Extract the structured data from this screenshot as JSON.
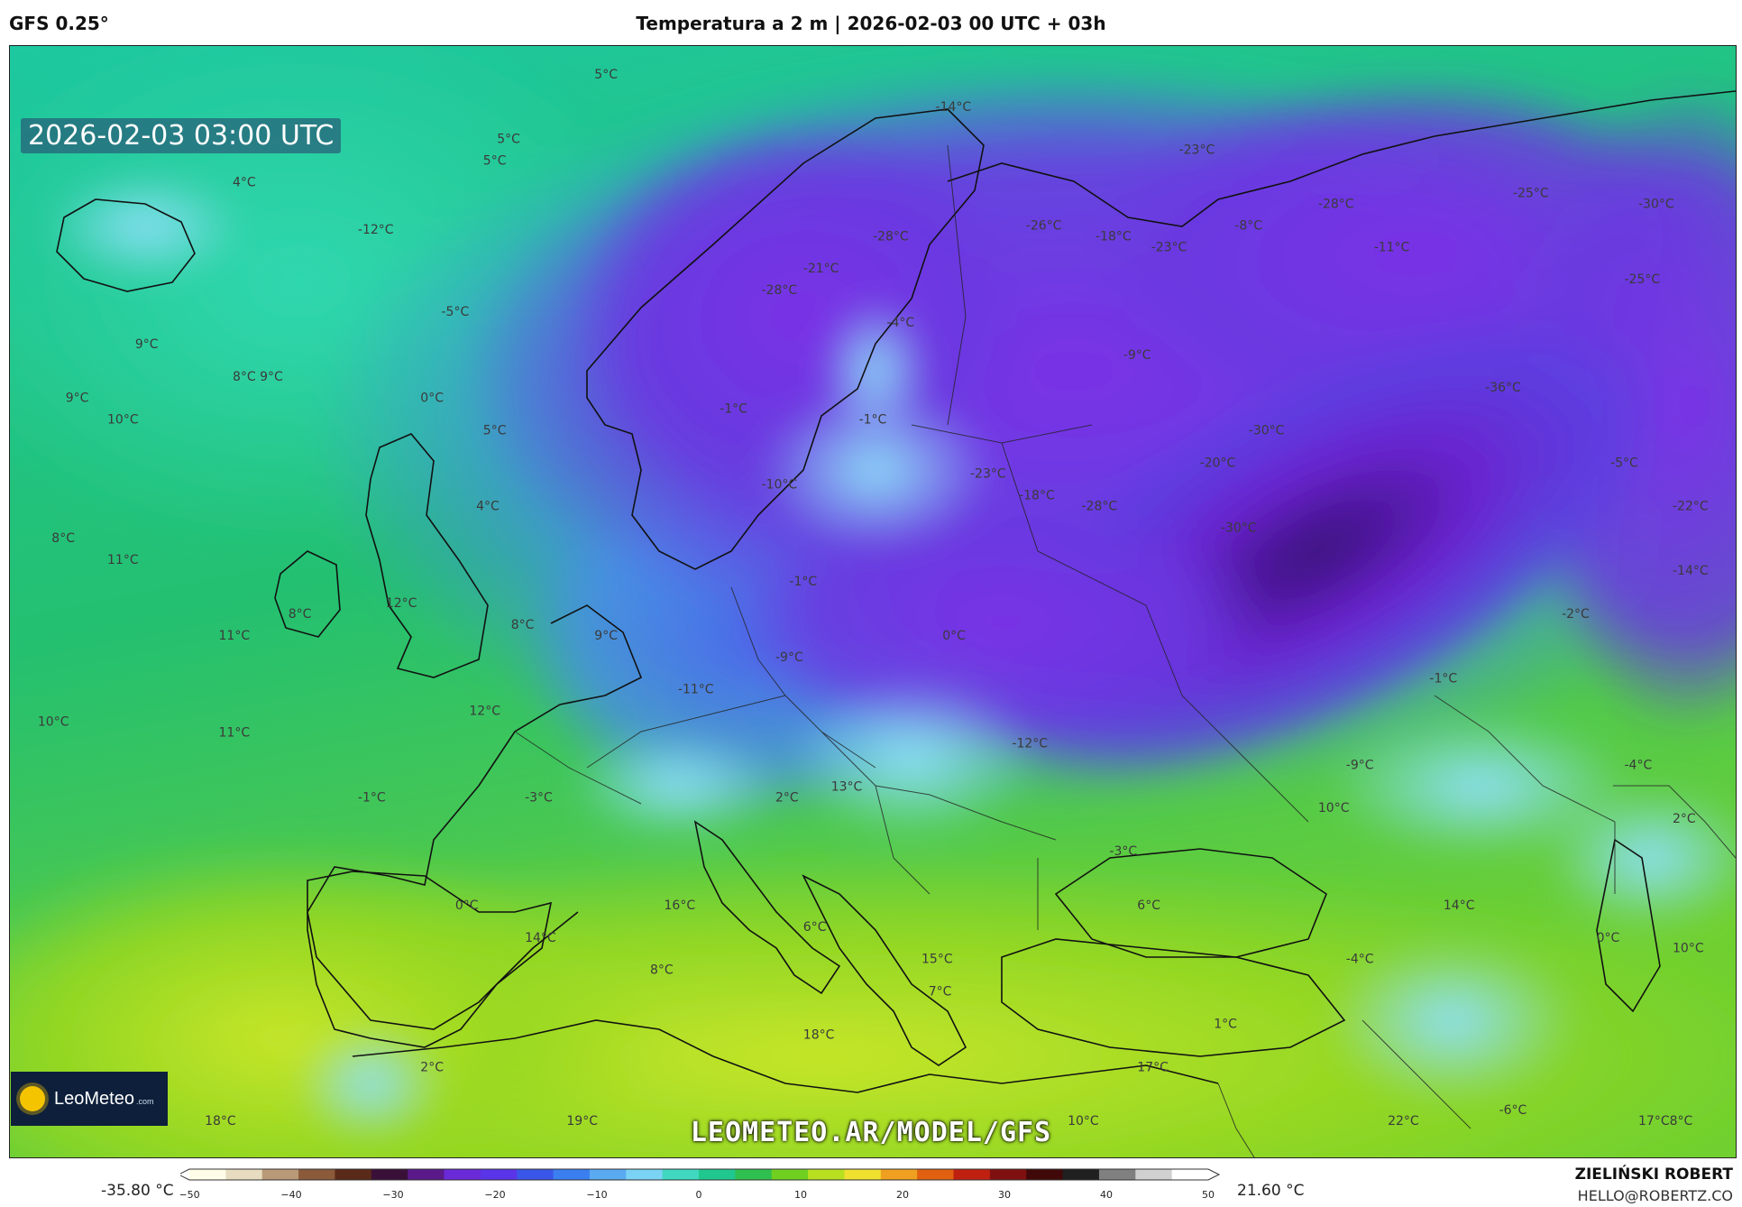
{
  "header": {
    "model": "GFS 0.25°",
    "title": "Temperatura a 2 m | 2026-02-03 00 UTC + 03h"
  },
  "map": {
    "timestamp": "2026-02-03 03:00 UTC",
    "watermark": "LEOMETEO.AR/MODEL/GFS",
    "logo": {
      "name": "LeoMeteo",
      "suffix": ".com"
    },
    "labels": [
      {
        "text": "5°C",
        "lon": -2,
        "lat": 72
      },
      {
        "text": "5°C",
        "lon": -9,
        "lat": 69
      },
      {
        "text": "5°C",
        "lon": -10,
        "lat": 68
      },
      {
        "text": "4°C",
        "lon": -28,
        "lat": 67
      },
      {
        "text": "-12°C",
        "lon": -19,
        "lat": 64.8
      },
      {
        "text": "-14°C",
        "lon": 22.5,
        "lat": 70.5
      },
      {
        "text": "-23°C",
        "lon": 40,
        "lat": 68.5
      },
      {
        "text": "-28°C",
        "lon": 50,
        "lat": 66
      },
      {
        "text": "-25°C",
        "lon": 64,
        "lat": 66.5
      },
      {
        "text": "-30°C",
        "lon": 73,
        "lat": 66
      },
      {
        "text": "-26°C",
        "lon": 29,
        "lat": 65
      },
      {
        "text": "-18°C",
        "lon": 34,
        "lat": 64.5
      },
      {
        "text": "-8°C",
        "lon": 44,
        "lat": 65
      },
      {
        "text": "-28°C",
        "lon": 18,
        "lat": 64.5
      },
      {
        "text": "-23°C",
        "lon": 38,
        "lat": 64
      },
      {
        "text": "-11°C",
        "lon": 54,
        "lat": 64
      },
      {
        "text": "-21°C",
        "lon": 13,
        "lat": 63
      },
      {
        "text": "-25°C",
        "lon": 72,
        "lat": 62.5
      },
      {
        "text": "-28°C",
        "lon": 10,
        "lat": 62
      },
      {
        "text": "-4°C",
        "lon": 19,
        "lat": 60.5
      },
      {
        "text": "-5°C",
        "lon": -13,
        "lat": 61
      },
      {
        "text": "-9°C",
        "lon": 36,
        "lat": 59
      },
      {
        "text": "9°C",
        "lon": -35,
        "lat": 59.5
      },
      {
        "text": "8°C 9°C",
        "lon": -28,
        "lat": 58
      },
      {
        "text": "9°C",
        "lon": -40,
        "lat": 57
      },
      {
        "text": "0°C",
        "lon": -14.5,
        "lat": 57
      },
      {
        "text": "-36°C",
        "lon": 62,
        "lat": 57.5
      },
      {
        "text": "-1°C",
        "lon": 7,
        "lat": 56.5
      },
      {
        "text": "-1°C",
        "lon": 17,
        "lat": 56
      },
      {
        "text": "10°C",
        "lon": -37,
        "lat": 56
      },
      {
        "text": "5°C",
        "lon": -10,
        "lat": 55.5
      },
      {
        "text": "-30°C",
        "lon": 45,
        "lat": 55.5
      },
      {
        "text": "-20°C",
        "lon": 41.5,
        "lat": 54
      },
      {
        "text": "-5°C",
        "lon": 71,
        "lat": 54
      },
      {
        "text": "-23°C",
        "lon": 25,
        "lat": 53.5
      },
      {
        "text": "-10°C",
        "lon": 10,
        "lat": 53
      },
      {
        "text": "-18°C",
        "lon": 28.5,
        "lat": 52.5
      },
      {
        "text": "-22°C",
        "lon": 78,
        "lat": 52
      },
      {
        "text": "4°C",
        "lon": -10.5,
        "lat": 52
      },
      {
        "text": "-28°C",
        "lon": 33,
        "lat": 52
      },
      {
        "text": "-30°C",
        "lon": 43,
        "lat": 51
      },
      {
        "text": "8°C",
        "lon": -41,
        "lat": 50.5
      },
      {
        "text": "11°C",
        "lon": -37,
        "lat": 49.5
      },
      {
        "text": "-14°C",
        "lon": 78,
        "lat": 49
      },
      {
        "text": "-1°C",
        "lon": 12,
        "lat": 48.5
      },
      {
        "text": "12°C",
        "lon": -17,
        "lat": 47.5
      },
      {
        "text": "8°C",
        "lon": -24,
        "lat": 47
      },
      {
        "text": "-2°C",
        "lon": 67.5,
        "lat": 47
      },
      {
        "text": "8°C",
        "lon": -8,
        "lat": 46.5
      },
      {
        "text": "9°C",
        "lon": -2,
        "lat": 46
      },
      {
        "text": "0°C",
        "lon": 23,
        "lat": 46
      },
      {
        "text": "11°C",
        "lon": -29,
        "lat": 46
      },
      {
        "text": "-9°C",
        "lon": 11,
        "lat": 45
      },
      {
        "text": "-1°C",
        "lon": 58,
        "lat": 44
      },
      {
        "text": "-11°C",
        "lon": 4,
        "lat": 43.5
      },
      {
        "text": "12°C",
        "lon": -11,
        "lat": 42.5
      },
      {
        "text": "10°C",
        "lon": -42,
        "lat": 42
      },
      {
        "text": "11°C",
        "lon": -29,
        "lat": 41.5
      },
      {
        "text": "-12°C",
        "lon": 28,
        "lat": 41
      },
      {
        "text": "-9°C",
        "lon": 52,
        "lat": 40
      },
      {
        "text": "-4°C",
        "lon": 72,
        "lat": 40
      },
      {
        "text": "-1°C",
        "lon": -19,
        "lat": 38.5
      },
      {
        "text": "-3°C",
        "lon": -7,
        "lat": 38.5
      },
      {
        "text": "13°C",
        "lon": 15,
        "lat": 39
      },
      {
        "text": "2°C",
        "lon": 11,
        "lat": 38.5
      },
      {
        "text": "10°C",
        "lon": 50,
        "lat": 38
      },
      {
        "text": "2°C",
        "lon": 76,
        "lat": 37.5
      },
      {
        "text": "-3°C",
        "lon": 35,
        "lat": 36
      },
      {
        "text": "6°C",
        "lon": 37,
        "lat": 33.5
      },
      {
        "text": "0°C",
        "lon": -12,
        "lat": 33.5
      },
      {
        "text": "16°C",
        "lon": 3,
        "lat": 33.5
      },
      {
        "text": "14°C",
        "lon": 59,
        "lat": 33.5
      },
      {
        "text": "6°C",
        "lon": 13,
        "lat": 32.5
      },
      {
        "text": "14°C",
        "lon": -7,
        "lat": 32
      },
      {
        "text": "0°C",
        "lon": 70,
        "lat": 32
      },
      {
        "text": "10°C",
        "lon": 76,
        "lat": 31.5
      },
      {
        "text": "15°C",
        "lon": 21.5,
        "lat": 31
      },
      {
        "text": "-4°C",
        "lon": 52,
        "lat": 31
      },
      {
        "text": "8°C",
        "lon": 2,
        "lat": 30.5
      },
      {
        "text": "7°C",
        "lon": 22,
        "lat": 29.5
      },
      {
        "text": "1°C",
        "lon": 42.5,
        "lat": 28
      },
      {
        "text": "18°C",
        "lon": 13,
        "lat": 27.5
      },
      {
        "text": "2°C",
        "lon": -14.5,
        "lat": 26
      },
      {
        "text": "17°C",
        "lon": 37,
        "lat": 26
      },
      {
        "text": "18°C",
        "lon": -43,
        "lat": 23.5
      },
      {
        "text": "18°C",
        "lon": -30,
        "lat": 23.5
      },
      {
        "text": "19°C",
        "lon": -4,
        "lat": 23.5
      },
      {
        "text": "10°C",
        "lon": 32,
        "lat": 23.5
      },
      {
        "text": "22°C",
        "lon": 55,
        "lat": 23.5
      },
      {
        "text": "-6°C",
        "lon": 63,
        "lat": 24
      },
      {
        "text": "17°C8°C",
        "lon": 73,
        "lat": 23.5
      }
    ]
  },
  "legend": {
    "min_label": "-35.80 °C",
    "max_label": "21.60 °C",
    "ticks": [
      "−50",
      "−40",
      "−30",
      "−20",
      "−10",
      "0",
      "10",
      "20",
      "30",
      "40",
      "50"
    ],
    "range": [
      -50,
      50
    ],
    "colors": [
      "#fffde8",
      "#e8dcc0",
      "#b99a78",
      "#8a5a3a",
      "#5a2a18",
      "#3a1038",
      "#5a1a8a",
      "#6a2ad8",
      "#5a34e8",
      "#3a56e8",
      "#3a7ef0",
      "#5aaaf2",
      "#7ad2f4",
      "#40d8c0",
      "#20c890",
      "#30c050",
      "#70d020",
      "#b8e020",
      "#f0e030",
      "#f0a020",
      "#e06010",
      "#c02010",
      "#801010",
      "#400808",
      "#202020",
      "#808080",
      "#d0d0d0",
      "#ffffff"
    ]
  },
  "credits": {
    "author": "ZIELIŃSKI ROBERT",
    "email": "HELLO@ROBERTZ.CO"
  }
}
